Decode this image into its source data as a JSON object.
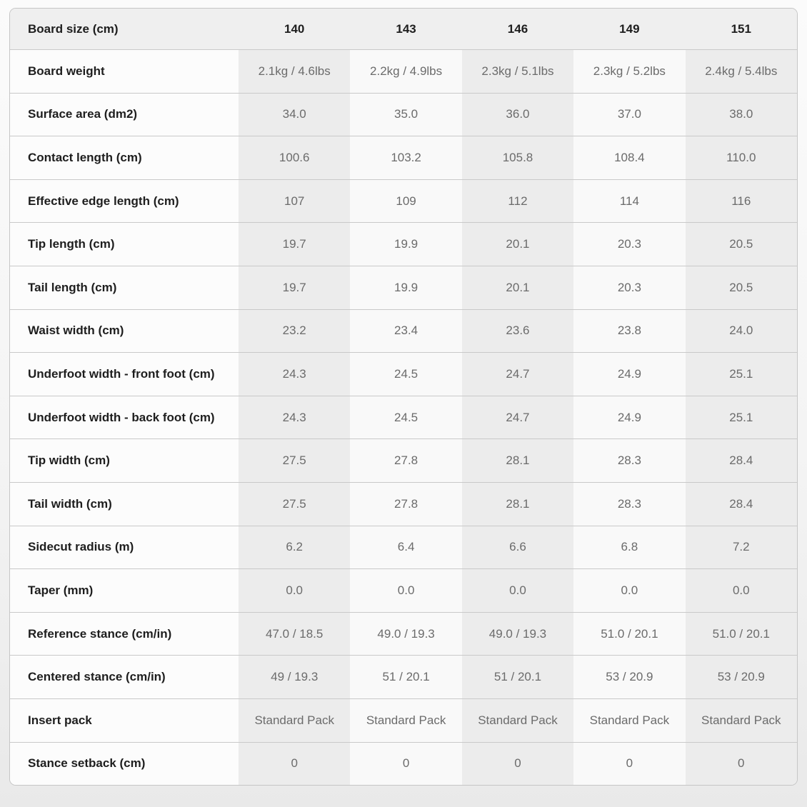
{
  "colors": {
    "header_row_bg": "#efefef",
    "stripe_dark": "#ececec",
    "stripe_light": "#f9f9f9",
    "label_column_bg": "#fcfcfc",
    "divider": "#c9c9c9",
    "label_text": "#1e1e1e",
    "value_text": "#6b6b6b"
  },
  "table": {
    "header": {
      "label": "Board size (cm)",
      "sizes": [
        "140",
        "143",
        "146",
        "149",
        "151"
      ]
    },
    "rows": [
      {
        "label": "Board weight",
        "values": [
          "2.1kg / 4.6lbs",
          "2.2kg / 4.9lbs",
          "2.3kg / 5.1lbs",
          "2.3kg / 5.2lbs",
          "2.4kg / 5.4lbs"
        ]
      },
      {
        "label": "Surface area (dm2)",
        "values": [
          "34.0",
          "35.0",
          "36.0",
          "37.0",
          "38.0"
        ]
      },
      {
        "label": "Contact length (cm)",
        "values": [
          "100.6",
          "103.2",
          "105.8",
          "108.4",
          "110.0"
        ]
      },
      {
        "label": "Effective edge length (cm)",
        "values": [
          "107",
          "109",
          "112",
          "114",
          "116"
        ]
      },
      {
        "label": "Tip length (cm)",
        "values": [
          "19.7",
          "19.9",
          "20.1",
          "20.3",
          "20.5"
        ]
      },
      {
        "label": "Tail length (cm)",
        "values": [
          "19.7",
          "19.9",
          "20.1",
          "20.3",
          "20.5"
        ]
      },
      {
        "label": "Waist width (cm)",
        "values": [
          "23.2",
          "23.4",
          "23.6",
          "23.8",
          "24.0"
        ]
      },
      {
        "label": "Underfoot width - front foot (cm)",
        "values": [
          "24.3",
          "24.5",
          "24.7",
          "24.9",
          "25.1"
        ]
      },
      {
        "label": "Underfoot width - back foot (cm)",
        "values": [
          "24.3",
          "24.5",
          "24.7",
          "24.9",
          "25.1"
        ]
      },
      {
        "label": "Tip width (cm)",
        "values": [
          "27.5",
          "27.8",
          "28.1",
          "28.3",
          "28.4"
        ]
      },
      {
        "label": "Tail width (cm)",
        "values": [
          "27.5",
          "27.8",
          "28.1",
          "28.3",
          "28.4"
        ]
      },
      {
        "label": "Sidecut radius (m)",
        "values": [
          "6.2",
          "6.4",
          "6.6",
          "6.8",
          "7.2"
        ]
      },
      {
        "label": "Taper (mm)",
        "values": [
          "0.0",
          "0.0",
          "0.0",
          "0.0",
          "0.0"
        ]
      },
      {
        "label": "Reference stance (cm/in)",
        "values": [
          "47.0 / 18.5",
          "49.0 / 19.3",
          "49.0 / 19.3",
          "51.0 / 20.1",
          "51.0 / 20.1"
        ]
      },
      {
        "label": "Centered stance (cm/in)",
        "values": [
          "49 / 19.3",
          "51 / 20.1",
          "51 / 20.1",
          "53 / 20.9",
          "53 / 20.9"
        ]
      },
      {
        "label": "Insert pack",
        "values": [
          "Standard Pack",
          "Standard Pack",
          "Standard Pack",
          "Standard Pack",
          "Standard Pack"
        ]
      },
      {
        "label": "Stance setback (cm)",
        "values": [
          "0",
          "0",
          "0",
          "0",
          "0"
        ]
      }
    ]
  }
}
